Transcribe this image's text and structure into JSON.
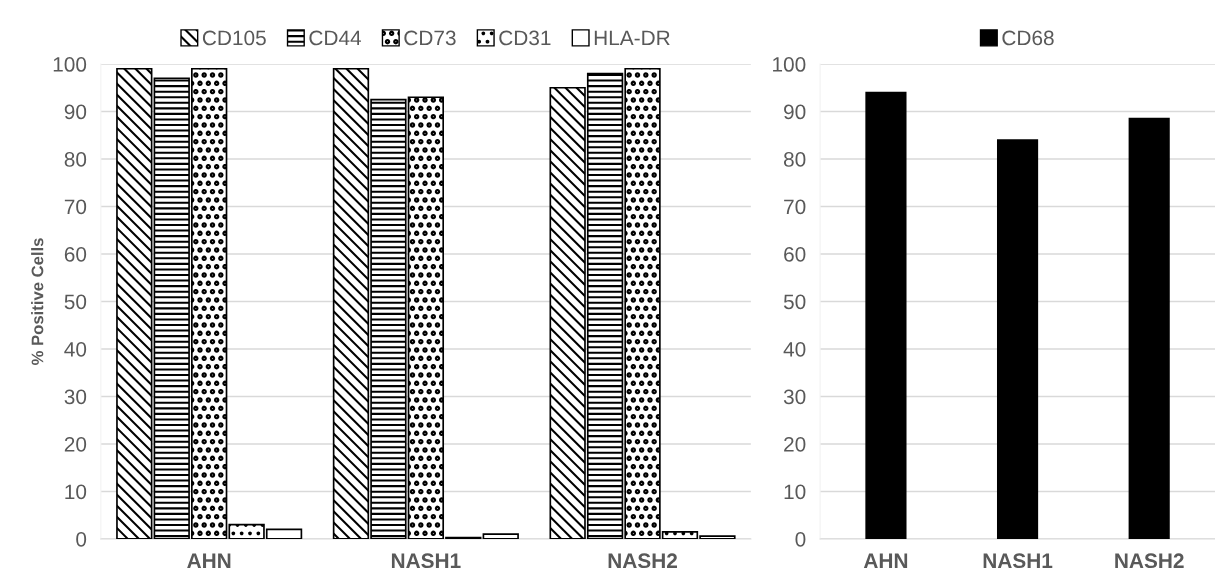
{
  "chart_data": [
    {
      "type": "bar",
      "ylabel": "% Positive Cells",
      "categories": [
        "AHN",
        "NASH1",
        "NASH2"
      ],
      "ylim": [
        0,
        100
      ],
      "yticks": [
        0,
        10,
        20,
        30,
        40,
        50,
        60,
        70,
        80,
        90,
        100
      ],
      "grid": "y",
      "legend": "top",
      "series": [
        {
          "name": "CD105",
          "color": "#000000",
          "values": [
            99,
            99,
            95
          ]
        },
        {
          "name": "CD44",
          "color": "#000000",
          "values": [
            97,
            92.5,
            98
          ]
        },
        {
          "name": "CD73",
          "color": "#000000",
          "values": [
            99,
            93,
            99
          ]
        },
        {
          "name": "CD31",
          "color": "#000000",
          "values": [
            3,
            0.3,
            1.5
          ]
        },
        {
          "name": "HLA-DR",
          "color": "#ffffff",
          "values": [
            2,
            1,
            0.6
          ]
        }
      ]
    },
    {
      "type": "bar",
      "categories": [
        "AHN",
        "NASH1",
        "NASH2"
      ],
      "ylim": [
        0,
        100
      ],
      "yticks": [
        0,
        10,
        20,
        30,
        40,
        50,
        60,
        70,
        80,
        90,
        100
      ],
      "grid": "y",
      "legend": "top",
      "series": [
        {
          "name": "CD68",
          "color": "#000000",
          "values": [
            94,
            84,
            88.5
          ]
        }
      ]
    }
  ]
}
